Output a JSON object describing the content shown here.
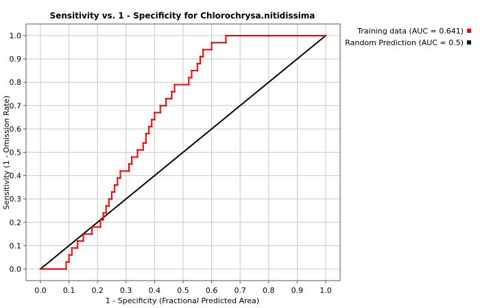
{
  "chart_data": {
    "type": "line",
    "title": "Sensitivity vs. 1 - Specificity for Chlorochrysa.nitidissima",
    "xlabel": "1 - Specificity  (Fractional Predicted Area)",
    "ylabel": "Sensitivity  (1 - Omission Rate)",
    "xlim": [
      0.0,
      1.0
    ],
    "ylim": [
      0.0,
      1.0
    ],
    "xticks": [
      "0.0",
      "0.1",
      "0.2",
      "0.3",
      "0.4",
      "0.5",
      "0.6",
      "0.7",
      "0.8",
      "0.9",
      "1.0"
    ],
    "yticks": [
      "0.0",
      "0.1",
      "0.2",
      "0.3",
      "0.4",
      "0.5",
      "0.6",
      "0.7",
      "0.8",
      "0.9",
      "1.0"
    ],
    "grid": true,
    "legend_position": "top-right outside",
    "series": [
      {
        "name": "Training data (AUC = 0.641)",
        "color": "#ff0000",
        "x": [
          0.0,
          0.09,
          0.09,
          0.1,
          0.1,
          0.11,
          0.11,
          0.13,
          0.13,
          0.15,
          0.15,
          0.18,
          0.18,
          0.21,
          0.21,
          0.22,
          0.22,
          0.23,
          0.23,
          0.24,
          0.24,
          0.25,
          0.25,
          0.26,
          0.26,
          0.27,
          0.27,
          0.28,
          0.28,
          0.31,
          0.31,
          0.32,
          0.32,
          0.34,
          0.34,
          0.36,
          0.36,
          0.37,
          0.37,
          0.38,
          0.38,
          0.39,
          0.39,
          0.4,
          0.4,
          0.42,
          0.42,
          0.44,
          0.44,
          0.46,
          0.46,
          0.47,
          0.47,
          0.52,
          0.52,
          0.53,
          0.53,
          0.55,
          0.55,
          0.56,
          0.56,
          0.57,
          0.57,
          0.6,
          0.6,
          0.65,
          0.65,
          0.8,
          0.8,
          1.0
        ],
        "y": [
          0.0,
          0.0,
          0.03,
          0.03,
          0.06,
          0.06,
          0.09,
          0.09,
          0.12,
          0.12,
          0.15,
          0.15,
          0.18,
          0.18,
          0.21,
          0.21,
          0.24,
          0.24,
          0.27,
          0.27,
          0.3,
          0.3,
          0.33,
          0.33,
          0.36,
          0.36,
          0.39,
          0.39,
          0.42,
          0.42,
          0.45,
          0.45,
          0.48,
          0.48,
          0.51,
          0.51,
          0.54,
          0.54,
          0.58,
          0.58,
          0.61,
          0.61,
          0.64,
          0.64,
          0.67,
          0.67,
          0.7,
          0.7,
          0.73,
          0.73,
          0.76,
          0.76,
          0.79,
          0.79,
          0.82,
          0.82,
          0.85,
          0.85,
          0.88,
          0.88,
          0.91,
          0.91,
          0.94,
          0.94,
          0.97,
          0.97,
          1.0,
          1.0,
          1.0,
          1.0
        ]
      },
      {
        "name": "Random Prediction (AUC = 0.5)",
        "color": "#000000",
        "x": [
          0.0,
          1.0
        ],
        "y": [
          0.0,
          1.0
        ]
      }
    ]
  }
}
